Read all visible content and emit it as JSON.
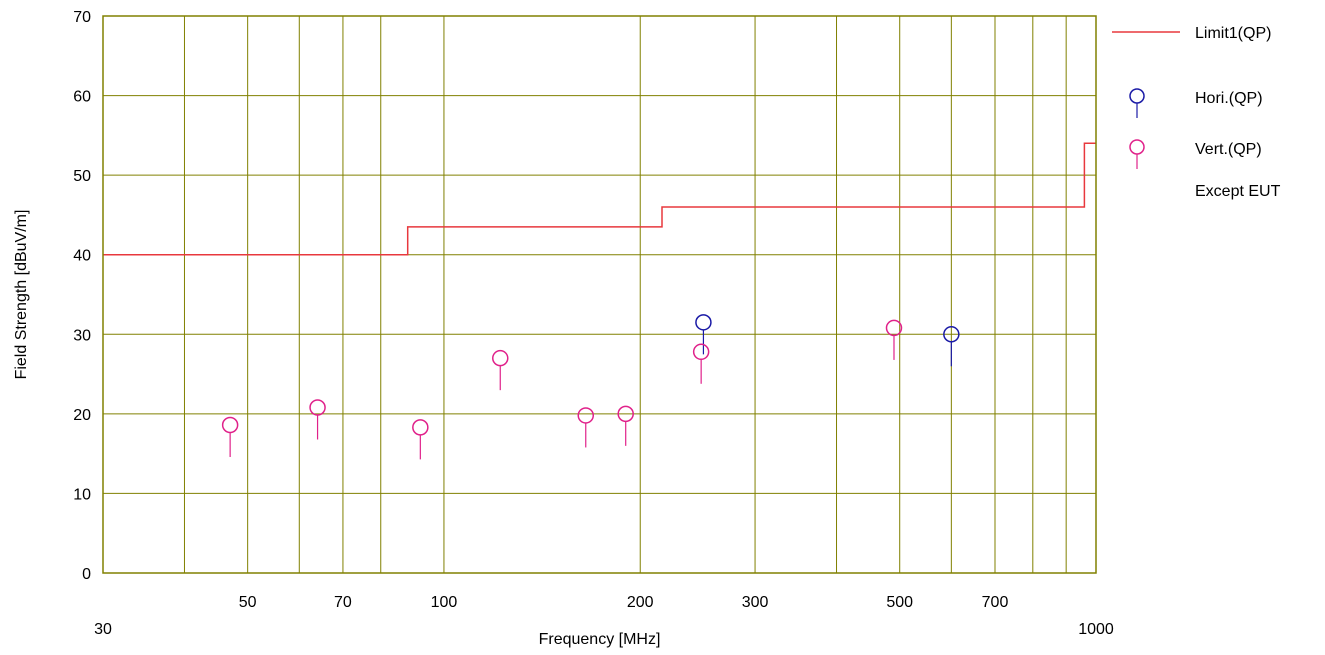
{
  "chart_data": {
    "type": "scatter",
    "xlabel": "Frequency [MHz]",
    "ylabel": "Field Strength [dBuV/m]",
    "x_scale": "log",
    "xlim": [
      30,
      1000
    ],
    "ylim": [
      0,
      70
    ],
    "grid": true,
    "legend_position": "right",
    "x_gridlines": [
      40,
      50,
      60,
      70,
      80,
      100,
      200,
      300,
      400,
      500,
      600,
      700,
      800,
      900
    ],
    "x_tick_labels": [
      {
        "value": 30,
        "label": "30"
      },
      {
        "value": 50,
        "label": "50"
      },
      {
        "value": 70,
        "label": "70"
      },
      {
        "value": 100,
        "label": "100"
      },
      {
        "value": 200,
        "label": "200"
      },
      {
        "value": 300,
        "label": "300"
      },
      {
        "value": 500,
        "label": "500"
      },
      {
        "value": 700,
        "label": "700"
      },
      {
        "value": 1000,
        "label": "1000"
      }
    ],
    "y_ticks": [
      0,
      10,
      20,
      30,
      40,
      50,
      60,
      70
    ],
    "limit": {
      "name": "Limit1(QP)",
      "color": "#e8383d",
      "steps": [
        {
          "x": 30,
          "y": 40
        },
        {
          "x": 88,
          "y": 40
        },
        {
          "x": 88,
          "y": 43.5
        },
        {
          "x": 216,
          "y": 43.5
        },
        {
          "x": 216,
          "y": 46
        },
        {
          "x": 960,
          "y": 46
        },
        {
          "x": 960,
          "y": 54
        },
        {
          "x": 1000,
          "y": 54
        }
      ]
    },
    "series": [
      {
        "name": "Hori.(QP)",
        "color": "#1a1aa6",
        "points": [
          {
            "x": 250,
            "y": 31.5
          },
          {
            "x": 600,
            "y": 30
          }
        ]
      },
      {
        "name": "Vert.(QP)",
        "color": "#e0218a",
        "points": [
          {
            "x": 47,
            "y": 18.6
          },
          {
            "x": 64,
            "y": 20.8
          },
          {
            "x": 92,
            "y": 18.3
          },
          {
            "x": 122,
            "y": 27
          },
          {
            "x": 165,
            "y": 19.8
          },
          {
            "x": 190,
            "y": 20
          },
          {
            "x": 248,
            "y": 27.8
          },
          {
            "x": 490,
            "y": 30.8
          }
        ]
      }
    ],
    "annotation": "Except EUT"
  }
}
